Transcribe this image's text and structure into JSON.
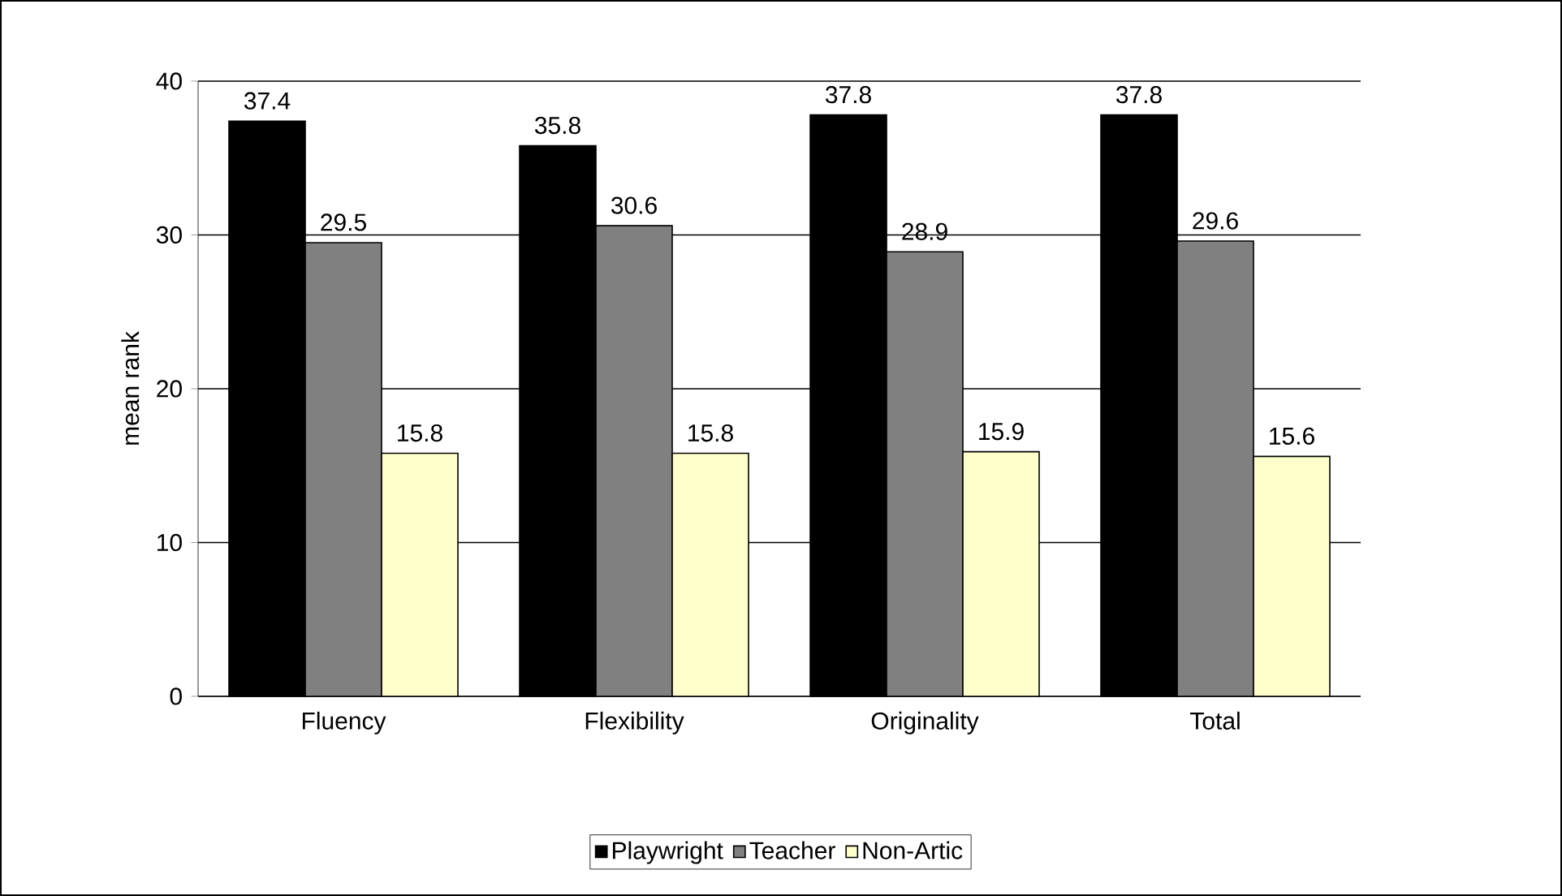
{
  "chart_data": {
    "type": "bar",
    "ylabel": "mean rank",
    "categories": [
      "Fluency",
      "Flexibility",
      "Originality",
      "Total"
    ],
    "series": [
      {
        "name": "Playwright",
        "color": "#000000",
        "values": [
          37.4,
          35.8,
          37.8,
          37.8
        ]
      },
      {
        "name": "Teacher",
        "color": "#808080",
        "values": [
          29.5,
          30.6,
          28.9,
          29.6
        ]
      },
      {
        "name": "Non-Artic",
        "color": "#ffffcc",
        "values": [
          15.8,
          15.8,
          15.9,
          15.6
        ]
      }
    ],
    "ylim": [
      0,
      40
    ],
    "yticks": [
      0,
      10,
      20,
      30,
      40
    ],
    "grid": "y",
    "legend": "bottom",
    "data_labels": true
  }
}
